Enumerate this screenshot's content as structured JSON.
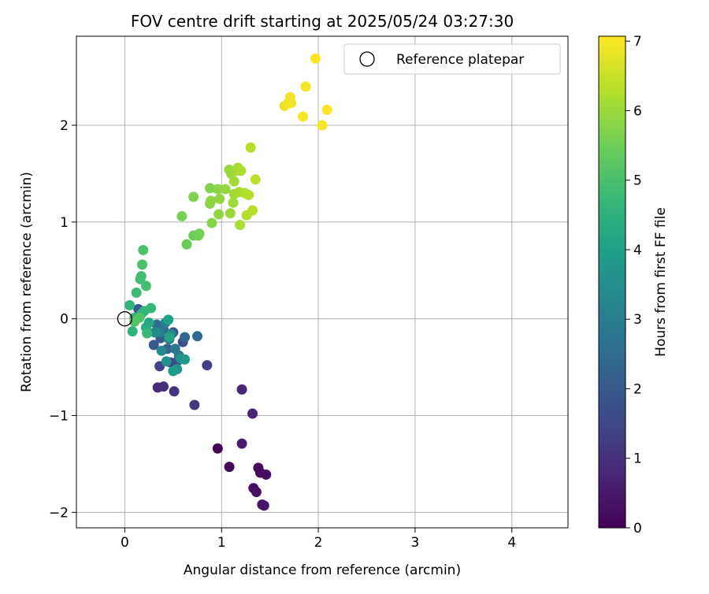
{
  "chart_data": {
    "type": "scatter",
    "title": "FOV centre drift starting at 2025/05/24 03:27:30",
    "xlabel": "Angular distance from reference (arcmin)",
    "ylabel": "Rotation from reference (arcmin)",
    "xlim": [
      -0.5,
      4.58
    ],
    "ylim": [
      -2.16,
      2.92
    ],
    "xticks": [
      0,
      1,
      2,
      3,
      4
    ],
    "xtick_labels": [
      "0",
      "1",
      "2",
      "3",
      "4"
    ],
    "yticks": [
      -2,
      -1,
      0,
      1,
      2
    ],
    "ytick_labels": [
      "−2",
      "−1",
      "0",
      "1",
      "2"
    ],
    "grid": true,
    "legend": {
      "position": "top-right",
      "label": "Reference platepar"
    },
    "reference_point": {
      "x": 0,
      "y": 0
    },
    "colorbar": {
      "label": "Hours from first FF file",
      "min": 0,
      "max": 7.07,
      "ticks": [
        0,
        1,
        2,
        3,
        4,
        5,
        6,
        7
      ],
      "tick_labels": [
        "0",
        "1",
        "2",
        "3",
        "4",
        "5",
        "6",
        "7"
      ],
      "colormap": "viridis"
    },
    "points": [
      {
        "x": 0.96,
        "y": -1.34,
        "t": 0.05
      },
      {
        "x": 1.08,
        "y": -1.53,
        "t": 0.1
      },
      {
        "x": 1.38,
        "y": -1.54,
        "t": 0.15
      },
      {
        "x": 1.4,
        "y": -1.59,
        "t": 0.2
      },
      {
        "x": 1.46,
        "y": -1.61,
        "t": 0.25
      },
      {
        "x": 1.33,
        "y": -1.75,
        "t": 0.3
      },
      {
        "x": 1.36,
        "y": -1.79,
        "t": 0.35
      },
      {
        "x": 1.42,
        "y": -1.92,
        "t": 0.4
      },
      {
        "x": 1.44,
        "y": -1.93,
        "t": 0.45
      },
      {
        "x": 1.21,
        "y": -1.29,
        "t": 0.55
      },
      {
        "x": 1.21,
        "y": -0.73,
        "t": 0.7
      },
      {
        "x": 1.32,
        "y": -0.98,
        "t": 0.75
      },
      {
        "x": 0.34,
        "y": -0.71,
        "t": 0.85
      },
      {
        "x": 0.4,
        "y": -0.7,
        "t": 0.95
      },
      {
        "x": 0.51,
        "y": -0.75,
        "t": 1.05
      },
      {
        "x": 0.72,
        "y": -0.89,
        "t": 1.15
      },
      {
        "x": 0.85,
        "y": -0.48,
        "t": 1.3
      },
      {
        "x": 0.36,
        "y": -0.49,
        "t": 1.4
      },
      {
        "x": 0.47,
        "y": -0.45,
        "t": 1.5
      },
      {
        "x": 0.55,
        "y": -0.43,
        "t": 1.6
      },
      {
        "x": 0.6,
        "y": -0.24,
        "t": 1.7
      },
      {
        "x": 0.5,
        "y": -0.14,
        "t": 1.8
      },
      {
        "x": 0.14,
        "y": 0.1,
        "t": 1.9
      },
      {
        "x": 0.3,
        "y": -0.27,
        "t": 2.0
      },
      {
        "x": 0.37,
        "y": -0.2,
        "t": 2.1
      },
      {
        "x": 0.44,
        "y": -0.31,
        "t": 2.2
      },
      {
        "x": 0.62,
        "y": -0.19,
        "t": 2.3
      },
      {
        "x": 0.75,
        "y": -0.18,
        "t": 2.4
      },
      {
        "x": 0.33,
        "y": -0.06,
        "t": 2.5
      },
      {
        "x": 0.4,
        "y": -0.11,
        "t": 2.6
      },
      {
        "x": 0.46,
        "y": -0.21,
        "t": 2.7
      },
      {
        "x": 0.52,
        "y": -0.31,
        "t": 2.8
      },
      {
        "x": 0.56,
        "y": -0.38,
        "t": 2.9
      },
      {
        "x": 0.36,
        "y": -0.14,
        "t": 3.0
      },
      {
        "x": 0.42,
        "y": -0.04,
        "t": 3.1
      },
      {
        "x": 0.48,
        "y": -0.16,
        "t": 3.2
      },
      {
        "x": 0.38,
        "y": -0.33,
        "t": 3.3
      },
      {
        "x": 0.31,
        "y": -0.14,
        "t": 3.4
      },
      {
        "x": 0.43,
        "y": -0.44,
        "t": 3.5
      },
      {
        "x": 0.54,
        "y": -0.52,
        "t": 3.6
      },
      {
        "x": 0.58,
        "y": -0.41,
        "t": 3.7
      },
      {
        "x": 0.62,
        "y": -0.42,
        "t": 3.8
      },
      {
        "x": 0.5,
        "y": -0.54,
        "t": 3.9
      },
      {
        "x": 0.45,
        "y": -0.01,
        "t": 4.0
      },
      {
        "x": 0.46,
        "y": -0.19,
        "t": 4.1
      },
      {
        "x": 0.25,
        "y": -0.04,
        "t": 4.2
      },
      {
        "x": 0.22,
        "y": -0.09,
        "t": 4.3
      },
      {
        "x": 0.17,
        "y": 0.05,
        "t": 4.4
      },
      {
        "x": 0.1,
        "y": 0.01,
        "t": 4.5
      },
      {
        "x": 0.08,
        "y": -0.13,
        "t": 4.55
      },
      {
        "x": 0.05,
        "y": 0.14,
        "t": 4.6
      },
      {
        "x": 0.2,
        "y": 0.08,
        "t": 4.65
      },
      {
        "x": 0.27,
        "y": 0.11,
        "t": 4.7
      },
      {
        "x": 0.23,
        "y": -0.15,
        "t": 4.75
      },
      {
        "x": 0.12,
        "y": 0.27,
        "t": 4.8
      },
      {
        "x": 0.16,
        "y": 0.41,
        "t": 4.85
      },
      {
        "x": 0.17,
        "y": 0.44,
        "t": 4.9
      },
      {
        "x": 0.22,
        "y": 0.34,
        "t": 4.95
      },
      {
        "x": 0.18,
        "y": 0.56,
        "t": 5.0
      },
      {
        "x": 0.19,
        "y": 0.71,
        "t": 5.05
      },
      {
        "x": 0.15,
        "y": 0.01,
        "t": 5.1
      },
      {
        "x": 0.1,
        "y": -0.03,
        "t": 5.15
      },
      {
        "x": 0.64,
        "y": 0.77,
        "t": 5.4
      },
      {
        "x": 0.71,
        "y": 0.86,
        "t": 5.45
      },
      {
        "x": 0.76,
        "y": 0.86,
        "t": 5.5
      },
      {
        "x": 0.77,
        "y": 0.88,
        "t": 5.55
      },
      {
        "x": 0.59,
        "y": 1.06,
        "t": 5.6
      },
      {
        "x": 0.71,
        "y": 1.26,
        "t": 5.65
      },
      {
        "x": 0.88,
        "y": 1.35,
        "t": 5.7
      },
      {
        "x": 0.9,
        "y": 0.99,
        "t": 5.75
      },
      {
        "x": 0.88,
        "y": 1.19,
        "t": 5.8
      },
      {
        "x": 0.96,
        "y": 1.34,
        "t": 5.82
      },
      {
        "x": 0.89,
        "y": 1.22,
        "t": 5.85
      },
      {
        "x": 0.97,
        "y": 1.08,
        "t": 5.87
      },
      {
        "x": 0.98,
        "y": 1.24,
        "t": 5.9
      },
      {
        "x": 1.04,
        "y": 1.34,
        "t": 5.92
      },
      {
        "x": 1.08,
        "y": 1.54,
        "t": 5.95
      },
      {
        "x": 1.1,
        "y": 1.5,
        "t": 5.97
      },
      {
        "x": 1.09,
        "y": 1.09,
        "t": 6.0
      },
      {
        "x": 1.12,
        "y": 1.2,
        "t": 6.02
      },
      {
        "x": 1.13,
        "y": 1.29,
        "t": 6.05
      },
      {
        "x": 1.13,
        "y": 1.42,
        "t": 6.07
      },
      {
        "x": 1.15,
        "y": 1.53,
        "t": 6.1
      },
      {
        "x": 1.17,
        "y": 1.56,
        "t": 6.12
      },
      {
        "x": 1.18,
        "y": 1.31,
        "t": 6.15
      },
      {
        "x": 1.19,
        "y": 0.97,
        "t": 6.17
      },
      {
        "x": 1.2,
        "y": 1.53,
        "t": 6.2
      },
      {
        "x": 1.24,
        "y": 1.3,
        "t": 6.22
      },
      {
        "x": 1.26,
        "y": 1.07,
        "t": 6.25
      },
      {
        "x": 1.28,
        "y": 1.28,
        "t": 6.27
      },
      {
        "x": 1.3,
        "y": 1.77,
        "t": 6.3
      },
      {
        "x": 1.32,
        "y": 1.12,
        "t": 6.32
      },
      {
        "x": 1.35,
        "y": 1.44,
        "t": 6.35
      },
      {
        "x": 1.65,
        "y": 2.2,
        "t": 6.85
      },
      {
        "x": 1.69,
        "y": 2.23,
        "t": 6.9
      },
      {
        "x": 1.71,
        "y": 2.29,
        "t": 6.93
      },
      {
        "x": 1.72,
        "y": 2.23,
        "t": 6.95
      },
      {
        "x": 1.84,
        "y": 2.09,
        "t": 6.98
      },
      {
        "x": 1.87,
        "y": 2.4,
        "t": 7.0
      },
      {
        "x": 1.97,
        "y": 2.69,
        "t": 7.02
      },
      {
        "x": 2.04,
        "y": 2.0,
        "t": 7.04
      },
      {
        "x": 2.09,
        "y": 2.16,
        "t": 7.07
      }
    ]
  }
}
